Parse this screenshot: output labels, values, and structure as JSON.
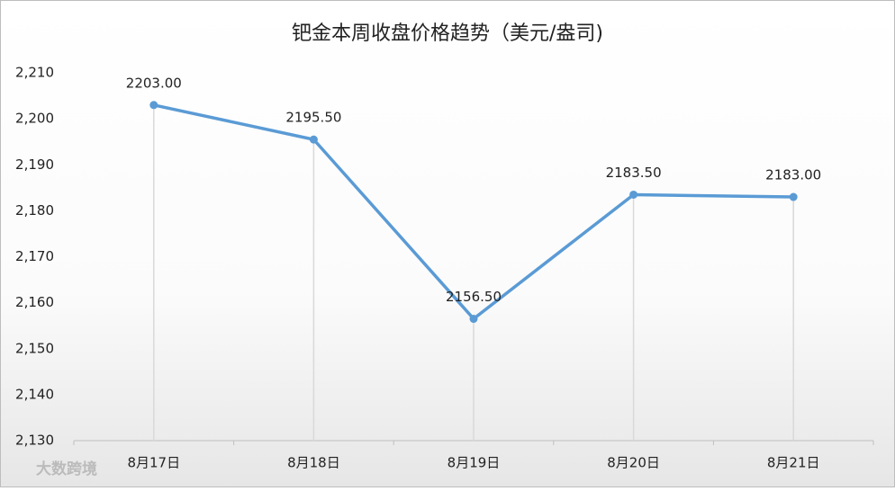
{
  "chart_data": {
    "type": "line",
    "title": "钯金本周收盘价格趋势（美元/盎司)",
    "categories": [
      "8月17日",
      "8月18日",
      "8月19日",
      "8月20日",
      "8月21日"
    ],
    "series": [
      {
        "name": "钯金",
        "color": "#5b9bd5",
        "values": [
          2203,
          2195.5,
          2156.5,
          2183.5,
          2183
        ],
        "value_labels": [
          "2203.00",
          "2195.50",
          "2156.50",
          "2183.50",
          "2183.00"
        ]
      }
    ],
    "ylim": [
      2130,
      2210
    ],
    "yticks": [
      {
        "value": 2130,
        "label": "2,130"
      },
      {
        "value": 2140,
        "label": "2,140"
      },
      {
        "value": 2150,
        "label": "2,150"
      },
      {
        "value": 2160,
        "label": "2,160"
      },
      {
        "value": 2170,
        "label": "2,170"
      },
      {
        "value": 2180,
        "label": "2,180"
      },
      {
        "value": 2190,
        "label": "2,190"
      },
      {
        "value": 2200,
        "label": "2,200"
      },
      {
        "value": 2210,
        "label": "2,210"
      }
    ],
    "drop_lines": true,
    "watermark": "大数跨境"
  }
}
